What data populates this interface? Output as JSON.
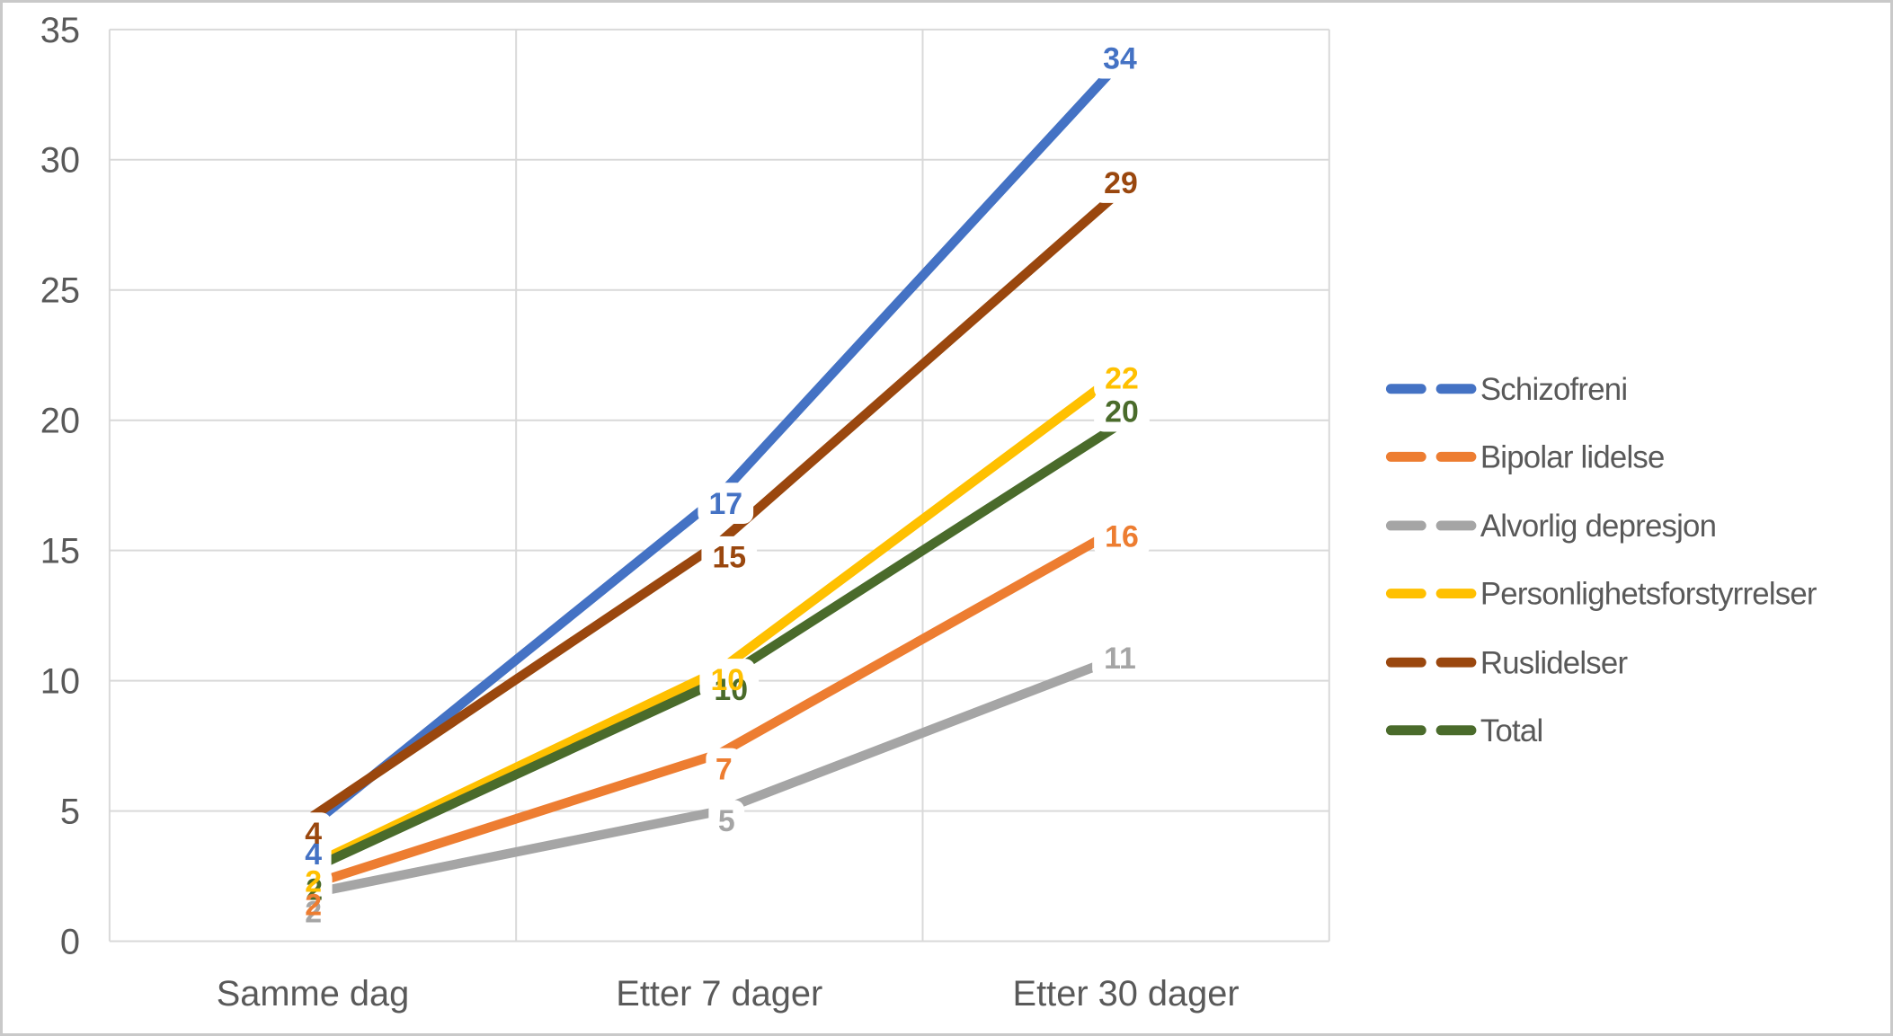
{
  "chart_data": {
    "type": "line",
    "title": "",
    "categories": [
      "Samme dag",
      "Etter 7 dager",
      "Etter 30 dager"
    ],
    "series": [
      {
        "name": "Schizofreni",
        "color": "#4472C4",
        "values": [
          4,
          17,
          34
        ]
      },
      {
        "name": "Bipolar lidelse",
        "color": "#ED7D31",
        "values": [
          2,
          7,
          16
        ]
      },
      {
        "name": "Alvorlig depresjon",
        "color": "#A5A5A5",
        "values": [
          2,
          5,
          11
        ]
      },
      {
        "name": "Personlighetsforstyrrelser",
        "color": "#FFC000",
        "values": [
          2,
          10,
          22
        ]
      },
      {
        "name": "Ruslidelser",
        "color": "#9A470E",
        "values": [
          4,
          15,
          29
        ]
      },
      {
        "name": "Total",
        "color": "#4A6B2B",
        "values": [
          2,
          10,
          20
        ]
      }
    ],
    "y_axis": {
      "min": 0,
      "max": 35,
      "step": 5,
      "tick_labels": [
        "0",
        "5",
        "10",
        "15",
        "20",
        "25",
        "30",
        "35"
      ]
    },
    "grid": true,
    "data_labels": true,
    "legend_position": "right"
  },
  "colors": {
    "gridline": "#D9D9D9",
    "axis_text": "#595959",
    "background": "#FFFFFF",
    "frame_border": "#C9C9C9"
  }
}
